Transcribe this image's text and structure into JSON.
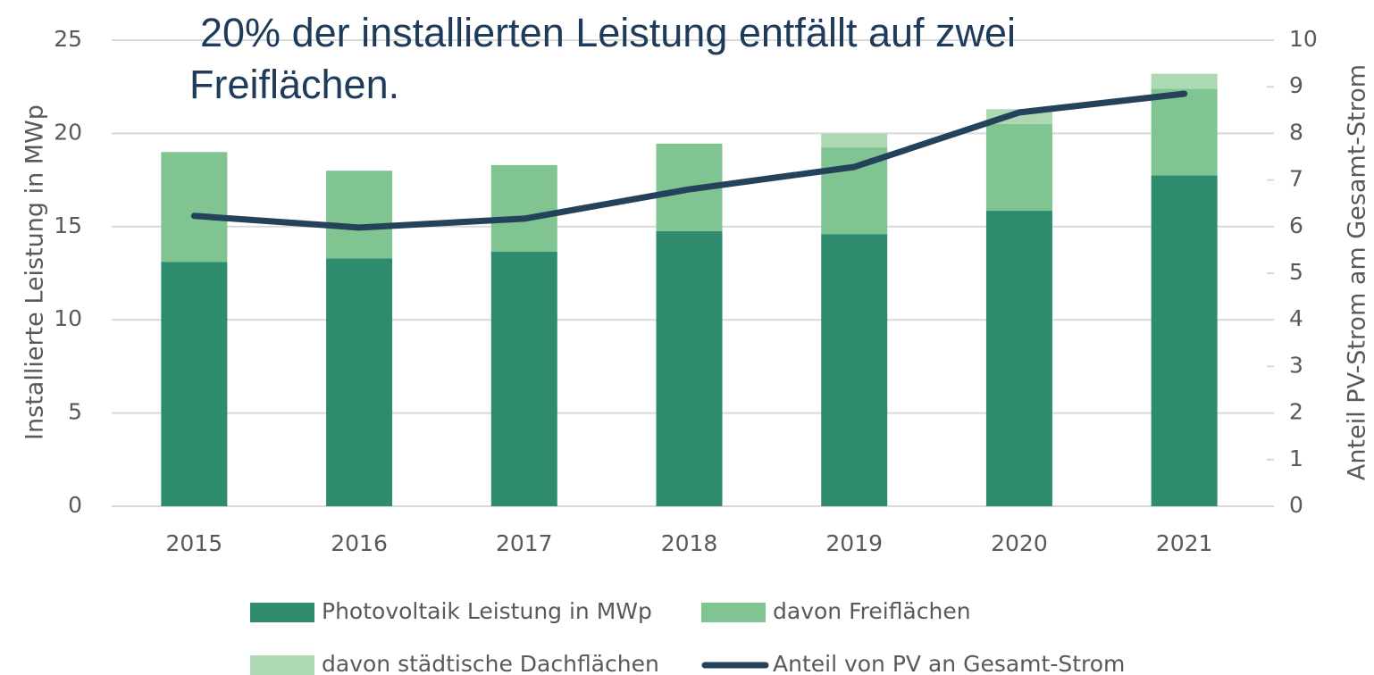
{
  "chart_data": {
    "type": "bar_line",
    "title": "20% der installierten Leistung entfällt auf zwei Freiflächen.",
    "y_label": "Installierte Leistung in MWp",
    "y2_label": "Anteil PV-Strom am Gesamt-Strom",
    "categories": [
      "2015",
      "2016",
      "2017",
      "2018",
      "2019",
      "2020",
      "2021"
    ],
    "series": [
      {
        "name": "Photovoltaik Leistung in MWp",
        "type": "bar",
        "color": "#2e8b6e",
        "values": [
          13.1,
          13.3,
          13.65,
          14.75,
          14.6,
          15.85,
          17.75
        ]
      },
      {
        "name": "davon Freiflächen",
        "type": "bar",
        "color": "#80c492",
        "values": [
          5.9,
          4.7,
          4.65,
          4.7,
          4.65,
          4.65,
          4.65
        ]
      },
      {
        "name": "davon städtische Dachflächen",
        "type": "bar",
        "color": "#acd9b4",
        "values": [
          null,
          null,
          null,
          null,
          0.75,
          0.8,
          0.8
        ]
      },
      {
        "name": "Anteil von PV an Gesamt-Strom",
        "type": "line",
        "axis": "y2",
        "color": "#24425a",
        "values": [
          6.23,
          5.98,
          6.17,
          6.8,
          7.28,
          8.45,
          8.85
        ]
      }
    ],
    "stacked": true,
    "ylim": [
      0,
      25
    ],
    "yticks": [
      0,
      5,
      10,
      15,
      20,
      25
    ],
    "y2lim": [
      0,
      10
    ],
    "y2ticks": [
      0,
      1,
      2,
      3,
      4,
      5,
      6,
      7,
      8,
      9,
      10
    ],
    "grid": true
  }
}
